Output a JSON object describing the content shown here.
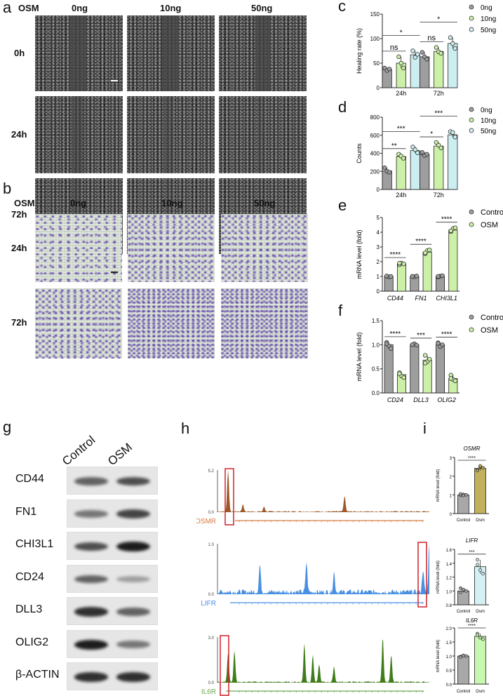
{
  "panels": {
    "a": "a",
    "b": "b",
    "c": "c",
    "d": "d",
    "e": "e",
    "f": "f",
    "g": "g",
    "h": "h",
    "i": "i"
  },
  "panel_a": {
    "treatment_label": "OSM",
    "columns": [
      "0ng",
      "10ng",
      "50ng"
    ],
    "rows": [
      "0h",
      "24h",
      "72h"
    ]
  },
  "panel_b": {
    "treatment_label": "OSM",
    "columns": [
      "0ng",
      "10ng",
      "50ng"
    ],
    "rows": [
      "24h",
      "72h"
    ]
  },
  "panel_g": {
    "lanes": [
      "Control",
      "OSM"
    ],
    "proteins": [
      {
        "name": "CD44",
        "band_intensity": [
          0.65,
          0.75
        ]
      },
      {
        "name": "FN1",
        "band_intensity": [
          0.55,
          0.8
        ]
      },
      {
        "name": "CHI3L1",
        "band_intensity": [
          0.75,
          1.0
        ]
      },
      {
        "name": "CD24",
        "band_intensity": [
          0.65,
          0.35
        ]
      },
      {
        "name": "DLL3",
        "band_intensity": [
          0.9,
          0.65
        ]
      },
      {
        "name": "OLIG2",
        "band_intensity": [
          1.0,
          0.55
        ]
      },
      {
        "name": "β-ACTIN",
        "band_intensity": [
          0.9,
          0.9
        ]
      }
    ]
  },
  "panel_h": {
    "tracks": [
      {
        "gene": "OSMR",
        "ymax": "5.2",
        "ymin": "0.0",
        "color": "#9c5a2a",
        "gene_color": "#d87a40"
      },
      {
        "gene": "LIFR",
        "ymax": "1.0",
        "ymin": "0.0",
        "color": "#4a90e2",
        "gene_color": "#4a90e2"
      },
      {
        "gene": "IL6R",
        "ymax": "3.0",
        "ymin": "0.0",
        "color": "#3f7d1a",
        "gene_color": "#6aa84f"
      }
    ],
    "highlight_color": "#d0202a"
  },
  "chart_data": [
    {
      "id": "c",
      "type": "bar",
      "ylabel": "Healing rate (%)",
      "ylim": [
        0,
        150
      ],
      "yticks": [
        0,
        50,
        100,
        150
      ],
      "categories": [
        "24h",
        "72h"
      ],
      "italic_categories": false,
      "legend_position": "right",
      "series": [
        {
          "name": "0ng",
          "color": "#9e9e9e",
          "values": [
            37,
            63
          ],
          "points": [
            [
              40,
              35,
              38
            ],
            [
              72,
              63,
              58
            ]
          ]
        },
        {
          "name": "10ng",
          "color": "#cdf0a8",
          "values": [
            50,
            74
          ],
          "points": [
            [
              63,
              50,
              40
            ],
            [
              82,
              73,
              70
            ]
          ]
        },
        {
          "name": "50ng",
          "color": "#cdeef0",
          "values": [
            67,
            90
          ],
          "points": [
            [
              75,
              62,
              68
            ],
            [
              102,
              90,
              80
            ]
          ]
        }
      ],
      "significance": [
        {
          "category": 0,
          "from": 0,
          "to": 1,
          "label": "ns"
        },
        {
          "category": 0,
          "from": 0,
          "to": 2,
          "label": "*"
        },
        {
          "category": 1,
          "from": 0,
          "to": 1,
          "label": "ns"
        },
        {
          "category": 1,
          "from": 0,
          "to": 2,
          "label": "*"
        }
      ]
    },
    {
      "id": "d",
      "type": "bar",
      "ylabel": "Counts",
      "ylim": [
        0,
        800
      ],
      "yticks": [
        0,
        200,
        400,
        600,
        800
      ],
      "categories": [
        "24h",
        "72h"
      ],
      "italic_categories": false,
      "legend_position": "right",
      "series": [
        {
          "name": "0ng",
          "color": "#9e9e9e",
          "values": [
            205,
            385
          ],
          "points": [
            [
              240,
              200,
              190
            ],
            [
              410,
              375,
              390
            ]
          ]
        },
        {
          "name": "10ng",
          "color": "#cdf0a8",
          "values": [
            365,
            480
          ],
          "points": [
            [
              390,
              370,
              345
            ],
            [
              520,
              490,
              460
            ]
          ]
        },
        {
          "name": "50ng",
          "color": "#cdeef0",
          "values": [
            430,
            605
          ],
          "points": [
            [
              470,
              440,
              405
            ],
            [
              640,
              630,
              580
            ]
          ]
        }
      ],
      "significance": [
        {
          "category": 0,
          "from": 0,
          "to": 1,
          "label": "**"
        },
        {
          "category": 0,
          "from": 0,
          "to": 2,
          "label": "***"
        },
        {
          "category": 1,
          "from": 0,
          "to": 1,
          "label": "*"
        },
        {
          "category": 1,
          "from": 0,
          "to": 2,
          "label": "***"
        }
      ]
    },
    {
      "id": "e",
      "type": "bar",
      "ylabel": "mRNA level (fold)",
      "ylim": [
        0,
        5
      ],
      "yticks": [
        0,
        1,
        2,
        3,
        4,
        5
      ],
      "categories": [
        "CD44",
        "FN1",
        "CHI3L1"
      ],
      "italic_categories": true,
      "legend_position": "right",
      "series": [
        {
          "name": "Control",
          "color": "#9e9e9e",
          "values": [
            1.0,
            1.0,
            1.0
          ],
          "points": [
            [
              1.02,
              0.97,
              1.0,
              1.03
            ],
            [
              1.0,
              0.98,
              1.03,
              1.0
            ],
            [
              0.97,
              1.02,
              1.05,
              1.0
            ]
          ]
        },
        {
          "name": "OSM",
          "color": "#cdf0a8",
          "values": [
            1.85,
            2.65,
            4.15
          ],
          "points": [
            [
              1.8,
              1.9,
              1.85,
              1.9
            ],
            [
              2.55,
              2.75,
              2.8,
              2.6
            ],
            [
              4.05,
              4.25,
              4.3,
              4.1
            ]
          ]
        }
      ],
      "significance": [
        {
          "category": 0,
          "from": 0,
          "to": 1,
          "label": "****"
        },
        {
          "category": 1,
          "from": 0,
          "to": 1,
          "label": "****"
        },
        {
          "category": 2,
          "from": 0,
          "to": 1,
          "label": "****"
        }
      ]
    },
    {
      "id": "f",
      "type": "bar",
      "ylabel": "mRNA level (fold)",
      "ylim": [
        0,
        1.5
      ],
      "yticks": [
        0,
        0.5,
        1.0,
        1.5
      ],
      "categories": [
        "CD24",
        "DLL3",
        "OLIG2"
      ],
      "italic_categories": true,
      "legend_position": "right",
      "series": [
        {
          "name": "Control",
          "color": "#9e9e9e",
          "values": [
            1.0,
            1.0,
            1.0
          ],
          "points": [
            [
              1.05,
              0.98,
              0.92,
              1.02
            ],
            [
              1.0,
              1.02,
              0.99,
              1.0
            ],
            [
              1.04,
              0.96,
              1.0,
              1.03
            ]
          ]
        },
        {
          "name": "OSM",
          "color": "#cdf0a8",
          "values": [
            0.38,
            0.68,
            0.3
          ],
          "points": [
            [
              0.42,
              0.35,
              0.32,
              0.4
            ],
            [
              0.78,
              0.65,
              0.7,
              0.62
            ],
            [
              0.37,
              0.28,
              0.25,
              0.3
            ]
          ]
        }
      ],
      "significance": [
        {
          "category": 0,
          "from": 0,
          "to": 1,
          "label": "****"
        },
        {
          "category": 1,
          "from": 0,
          "to": 1,
          "label": "***"
        },
        {
          "category": 2,
          "from": 0,
          "to": 1,
          "label": "****"
        }
      ]
    },
    {
      "id": "i1",
      "type": "bar",
      "title": "OSMR",
      "ylabel": "mRNA level (fold)",
      "ylim": [
        0,
        3
      ],
      "yticks": [
        0,
        1,
        2,
        3
      ],
      "categories": [
        "Control",
        "Osm"
      ],
      "single": true,
      "series": [
        {
          "colors": [
            "#a8a8a8",
            "#c2b15a"
          ],
          "values": [
            1.0,
            2.42
          ],
          "points": [
            [
              0.98,
              1.02,
              1.0,
              1.05,
              0.97
            ],
            [
              2.35,
              2.5,
              2.45,
              2.3,
              2.55
            ]
          ]
        }
      ],
      "significance": [
        {
          "from": 0,
          "to": 1,
          "label": "****"
        }
      ]
    },
    {
      "id": "i2",
      "type": "bar",
      "title": "LIFR",
      "ylabel": "mRNA level (fold)",
      "ylim": [
        0.8,
        1.6
      ],
      "yticks": [
        0.8,
        1.0,
        1.2,
        1.4,
        1.6
      ],
      "categories": [
        "Control",
        "Osm"
      ],
      "single": true,
      "series": [
        {
          "colors": [
            "#a8a8a8",
            "#d4f0f2"
          ],
          "values": [
            1.0,
            1.35
          ],
          "points": [
            [
              0.98,
              1.02,
              1.0,
              1.04
            ],
            [
              1.45,
              1.3,
              1.25,
              1.38
            ]
          ]
        }
      ],
      "significance": [
        {
          "from": 0,
          "to": 1,
          "label": "***"
        }
      ]
    },
    {
      "id": "i3",
      "type": "bar",
      "title": "IL6R",
      "ylabel": "mRNA level (fold)",
      "ylim": [
        0,
        2
      ],
      "yticks": [
        0,
        0.5,
        1.0,
        1.5,
        2.0
      ],
      "categories": [
        "Control",
        "Osm"
      ],
      "single": true,
      "series": [
        {
          "colors": [
            "#a8a8a8",
            "#c8f7b0"
          ],
          "values": [
            1.0,
            1.7
          ],
          "points": [
            [
              0.98,
              1.02,
              1.0,
              0.96,
              1.01
            ],
            [
              1.8,
              1.65,
              1.6,
              1.75
            ]
          ]
        }
      ],
      "significance": [
        {
          "from": 0,
          "to": 1,
          "label": "****"
        }
      ]
    }
  ]
}
